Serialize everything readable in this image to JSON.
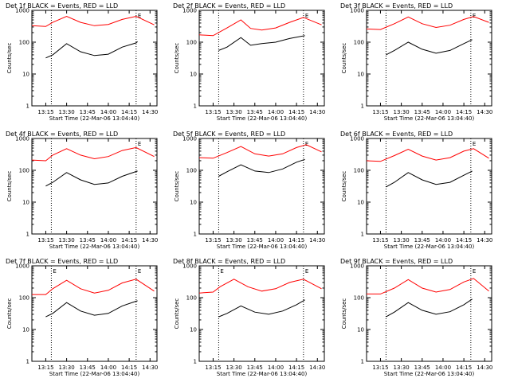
{
  "colors": {
    "events": "#000000",
    "lld": "#ff0000",
    "axis": "#000000",
    "background": "#ffffff"
  },
  "chart_data": [
    {
      "type": "line",
      "title": "Det 1f BLACK = Events, RED = LLD",
      "xlabel": "Start Time (22-Mar-06 13:04:40)",
      "ylabel": "Counts/sec",
      "xticks": [
        "13:15",
        "13:30",
        "13:45",
        "14:00",
        "14:15",
        "14:30"
      ],
      "yticks": [
        "1",
        "10",
        "100",
        "1000"
      ],
      "yscale": "log",
      "ylim": [
        1,
        1000
      ],
      "xlim_minutes": [
        13.06,
        14.55
      ],
      "markers": [
        {
          "time": "13:19",
          "label": ""
        },
        {
          "time": "14:20",
          "label": "E"
        }
      ],
      "series": [
        {
          "name": "BLACK = Events",
          "times": [
            "13:15",
            "13:20",
            "13:30",
            "13:40",
            "13:50",
            "14:00",
            "14:10",
            "14:20",
            "14:21"
          ],
          "values": [
            32,
            40,
            90,
            50,
            38,
            42,
            70,
            95,
            105
          ]
        },
        {
          "name": "RED = LLD",
          "times": [
            "13:05",
            "13:15",
            "13:20",
            "13:30",
            "13:40",
            "13:50",
            "14:00",
            "14:10",
            "14:20",
            "14:33"
          ],
          "values": [
            330,
            310,
            420,
            650,
            420,
            330,
            360,
            520,
            650,
            350
          ]
        }
      ]
    },
    {
      "type": "line",
      "title": "Det 2f BLACK = Events, RED = LLD",
      "xlabel": "Start Time (22-Mar-06 13:04:40)",
      "ylabel": "Counts/sec",
      "xticks": [
        "13:15",
        "13:30",
        "13:45",
        "14:00",
        "14:15",
        "14:30"
      ],
      "yticks": [
        "1",
        "10",
        "100",
        "1000"
      ],
      "yscale": "log",
      "ylim": [
        1,
        1000
      ],
      "markers": [
        {
          "time": "13:19",
          "label": ""
        },
        {
          "time": "14:20",
          "label": "E"
        }
      ],
      "series": [
        {
          "name": "BLACK = Events",
          "times": [
            "13:19",
            "13:25",
            "13:35",
            "13:42",
            "13:50",
            "14:00",
            "14:10",
            "14:21"
          ],
          "values": [
            55,
            70,
            140,
            80,
            90,
            100,
            130,
            160
          ]
        },
        {
          "name": "RED = LLD",
          "times": [
            "13:05",
            "13:15",
            "13:25",
            "13:35",
            "13:42",
            "13:50",
            "14:00",
            "14:10",
            "14:20",
            "14:33"
          ],
          "values": [
            170,
            160,
            280,
            500,
            270,
            240,
            280,
            420,
            600,
            350
          ]
        }
      ]
    },
    {
      "type": "line",
      "title": "Det 3f BLACK = Events, RED = LLD",
      "xlabel": "Start Time (22-Mar-06 13:04:40)",
      "ylabel": "Counts/sec",
      "xticks": [
        "13:15",
        "13:30",
        "13:45",
        "14:00",
        "14:15",
        "14:30"
      ],
      "yticks": [
        "1",
        "10",
        "100",
        "1000"
      ],
      "yscale": "log",
      "ylim": [
        1,
        1000
      ],
      "markers": [
        {
          "time": "13:19",
          "label": ""
        },
        {
          "time": "14:20",
          "label": "E"
        }
      ],
      "series": [
        {
          "name": "BLACK = Events",
          "times": [
            "13:19",
            "13:25",
            "13:35",
            "13:45",
            "13:55",
            "14:05",
            "14:15",
            "14:21"
          ],
          "values": [
            40,
            55,
            100,
            60,
            45,
            55,
            90,
            120
          ]
        },
        {
          "name": "RED = LLD",
          "times": [
            "13:05",
            "13:15",
            "13:25",
            "13:35",
            "13:45",
            "13:55",
            "14:05",
            "14:15",
            "14:22",
            "14:33"
          ],
          "values": [
            260,
            250,
            380,
            620,
            380,
            290,
            340,
            520,
            640,
            420
          ]
        }
      ]
    },
    {
      "type": "line",
      "title": "Det 4f BLACK = Events, RED = LLD",
      "xlabel": "Start Time (22-Mar-06 13:04:40)",
      "ylabel": "Counts/sec",
      "xticks": [
        "13:15",
        "13:30",
        "13:45",
        "14:00",
        "14:15",
        "14:30"
      ],
      "yticks": [
        "1",
        "10",
        "100",
        "1000"
      ],
      "yscale": "log",
      "ylim": [
        1,
        1000
      ],
      "markers": [
        {
          "time": "13:19",
          "label": ""
        },
        {
          "time": "14:20",
          "label": "E"
        }
      ],
      "series": [
        {
          "name": "BLACK = Events",
          "times": [
            "13:15",
            "13:20",
            "13:30",
            "13:40",
            "13:50",
            "14:00",
            "14:10",
            "14:21"
          ],
          "values": [
            32,
            42,
            85,
            50,
            36,
            40,
            65,
            95
          ]
        },
        {
          "name": "RED = LLD",
          "times": [
            "13:05",
            "13:15",
            "13:20",
            "13:30",
            "13:40",
            "13:50",
            "14:00",
            "14:10",
            "14:20",
            "14:33"
          ],
          "values": [
            210,
            200,
            300,
            480,
            300,
            230,
            270,
            420,
            520,
            270
          ]
        }
      ]
    },
    {
      "type": "line",
      "title": "Det 5f BLACK = Events, RED = LLD",
      "xlabel": "Start Time (22-Mar-06 13:04:40)",
      "ylabel": "Counts/sec",
      "xticks": [
        "13:15",
        "13:30",
        "13:45",
        "14:00",
        "14:15",
        "14:30"
      ],
      "yticks": [
        "1",
        "10",
        "100",
        "1000"
      ],
      "yscale": "log",
      "ylim": [
        1,
        1000
      ],
      "markers": [
        {
          "time": "13:19",
          "label": ""
        },
        {
          "time": "14:20",
          "label": "E"
        }
      ],
      "series": [
        {
          "name": "BLACK = Events",
          "times": [
            "13:19",
            "13:25",
            "13:35",
            "13:45",
            "13:55",
            "14:05",
            "14:15",
            "14:21"
          ],
          "values": [
            65,
            90,
            150,
            95,
            85,
            110,
            180,
            220
          ]
        },
        {
          "name": "RED = LLD",
          "times": [
            "13:05",
            "13:15",
            "13:25",
            "13:35",
            "13:45",
            "13:55",
            "14:05",
            "14:15",
            "14:22",
            "14:33"
          ],
          "values": [
            250,
            240,
            360,
            560,
            330,
            280,
            330,
            520,
            640,
            380
          ]
        }
      ]
    },
    {
      "type": "line",
      "title": "Det 6f BLACK = Events, RED = LLD",
      "xlabel": "Start Time (22-Mar-06 13:04:40)",
      "ylabel": "Counts/sec",
      "xticks": [
        "13:15",
        "13:30",
        "13:45",
        "14:00",
        "14:15",
        "14:30"
      ],
      "yticks": [
        "1",
        "10",
        "100",
        "1000"
      ],
      "yscale": "log",
      "ylim": [
        1,
        1000
      ],
      "markers": [
        {
          "time": "13:19",
          "label": ""
        },
        {
          "time": "14:20",
          "label": "E"
        }
      ],
      "series": [
        {
          "name": "BLACK = Events",
          "times": [
            "13:19",
            "13:25",
            "13:35",
            "13:45",
            "13:55",
            "14:05",
            "14:15",
            "14:21"
          ],
          "values": [
            30,
            42,
            85,
            50,
            36,
            42,
            70,
            95
          ]
        },
        {
          "name": "RED = LLD",
          "times": [
            "13:05",
            "13:15",
            "13:25",
            "13:35",
            "13:45",
            "13:55",
            "14:05",
            "14:15",
            "14:22",
            "14:33"
          ],
          "values": [
            200,
            190,
            290,
            460,
            280,
            210,
            250,
            400,
            480,
            240
          ]
        }
      ]
    },
    {
      "type": "line",
      "title": "Det 7f BLACK = Events, RED = LLD",
      "xlabel": "Start Time (22-Mar-06 13:04:40)",
      "ylabel": "Counts/sec",
      "xticks": [
        "13:15",
        "13:30",
        "13:45",
        "14:00",
        "14:15",
        "14:30"
      ],
      "yticks": [
        "1",
        "10",
        "100",
        "1000"
      ],
      "yscale": "log",
      "ylim": [
        1,
        1000
      ],
      "markers": [
        {
          "time": "13:19",
          "label": "E"
        },
        {
          "time": "14:20",
          "label": "E"
        }
      ],
      "series": [
        {
          "name": "BLACK = Events",
          "times": [
            "13:15",
            "13:20",
            "13:30",
            "13:40",
            "13:50",
            "14:00",
            "14:10",
            "14:21"
          ],
          "values": [
            25,
            32,
            70,
            38,
            28,
            32,
            55,
            80
          ]
        },
        {
          "name": "RED = LLD",
          "times": [
            "13:05",
            "13:15",
            "13:20",
            "13:30",
            "13:40",
            "13:50",
            "14:00",
            "14:10",
            "14:20",
            "14:33"
          ],
          "values": [
            125,
            125,
            190,
            350,
            190,
            140,
            170,
            290,
            380,
            160
          ]
        }
      ]
    },
    {
      "type": "line",
      "title": "Det 8f BLACK = Events, RED = LLD",
      "xlabel": "Start Time (22-Mar-06 13:04:40)",
      "ylabel": "Counts/sec",
      "xticks": [
        "13:15",
        "13:30",
        "13:45",
        "14:00",
        "14:15",
        "14:30"
      ],
      "yticks": [
        "1",
        "10",
        "100",
        "1000"
      ],
      "yscale": "log",
      "ylim": [
        1,
        1000
      ],
      "markers": [
        {
          "time": "13:19",
          "label": "E"
        },
        {
          "time": "14:20",
          "label": "E"
        }
      ],
      "series": [
        {
          "name": "BLACK = Events",
          "times": [
            "13:19",
            "13:25",
            "13:35",
            "13:45",
            "13:55",
            "14:05",
            "14:15",
            "14:21"
          ],
          "values": [
            25,
            32,
            55,
            35,
            30,
            38,
            60,
            85
          ]
        },
        {
          "name": "RED = LLD",
          "times": [
            "13:05",
            "13:15",
            "13:20",
            "13:30",
            "13:40",
            "13:50",
            "14:00",
            "14:10",
            "14:20",
            "14:33"
          ],
          "values": [
            140,
            150,
            220,
            380,
            220,
            160,
            190,
            300,
            380,
            190
          ]
        }
      ]
    },
    {
      "type": "line",
      "title": "Det 9f BLACK = Events, RED = LLD",
      "xlabel": "Start Time (22-Mar-06 13:04:40)",
      "ylabel": "Counts/sec",
      "xticks": [
        "13:15",
        "13:30",
        "13:45",
        "14:00",
        "14:15",
        "14:30"
      ],
      "yticks": [
        "1",
        "10",
        "100",
        "1000"
      ],
      "yscale": "log",
      "ylim": [
        1,
        1000
      ],
      "markers": [
        {
          "time": "13:19",
          "label": ""
        },
        {
          "time": "14:20",
          "label": "E"
        }
      ],
      "series": [
        {
          "name": "BLACK = Events",
          "times": [
            "13:19",
            "13:25",
            "13:35",
            "13:45",
            "13:55",
            "14:05",
            "14:15",
            "14:21"
          ],
          "values": [
            25,
            35,
            70,
            40,
            30,
            36,
            60,
            90
          ]
        },
        {
          "name": "RED = LLD",
          "times": [
            "13:05",
            "13:15",
            "13:25",
            "13:35",
            "13:45",
            "13:55",
            "14:05",
            "14:15",
            "14:22",
            "14:33"
          ],
          "values": [
            130,
            130,
            200,
            370,
            200,
            150,
            180,
            310,
            400,
            160
          ]
        }
      ]
    }
  ]
}
